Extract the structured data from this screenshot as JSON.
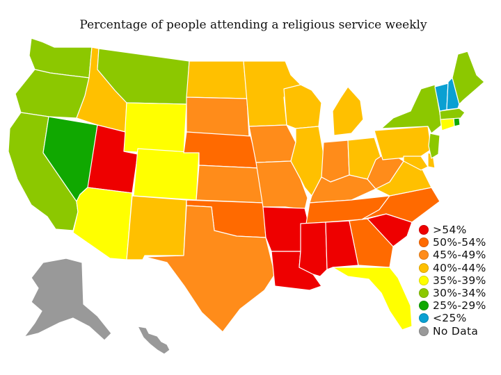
{
  "title": "Percentage of people attending a religious service weekly",
  "colors": {
    "gt54": "#ee0000",
    "p50_54": "#ff6a00",
    "p45_49": "#ff8c1a",
    "p40_44": "#ffc000",
    "p35_39": "#ffff00",
    "p30_34": "#8cc800",
    "p25_29": "#10a800",
    "lt25": "#0aa0d2",
    "nodata": "#999999"
  },
  "legend": [
    {
      "label": ">54%",
      "color": "#ee0000"
    },
    {
      "label": "50%-54%",
      "color": "#ff6a00"
    },
    {
      "label": "45%-49%",
      "color": "#ff8c1a"
    },
    {
      "label": "40%-44%",
      "color": "#ffc000"
    },
    {
      "label": "35%-39%",
      "color": "#ffff00"
    },
    {
      "label": "30%-34%",
      "color": "#8cc800"
    },
    {
      "label": "25%-29%",
      "color": "#10a800"
    },
    {
      "label": "<25%",
      "color": "#0aa0d2"
    },
    {
      "label": "No Data",
      "color": "#999999"
    }
  ],
  "states": [
    {
      "name": "Washington",
      "category": "30%-34%"
    },
    {
      "name": "Oregon",
      "category": "30%-34%"
    },
    {
      "name": "California",
      "category": "30%-34%"
    },
    {
      "name": "Nevada",
      "category": "25%-29%"
    },
    {
      "name": "Idaho",
      "category": "40%-44%"
    },
    {
      "name": "Montana",
      "category": "30%-34%"
    },
    {
      "name": "Wyoming",
      "category": "35%-39%"
    },
    {
      "name": "Utah",
      "category": ">54%"
    },
    {
      "name": "Colorado",
      "category": "35%-39%"
    },
    {
      "name": "Arizona",
      "category": "35%-39%"
    },
    {
      "name": "New Mexico",
      "category": "40%-44%"
    },
    {
      "name": "North Dakota",
      "category": "40%-44%"
    },
    {
      "name": "South Dakota",
      "category": "45%-49%"
    },
    {
      "name": "Nebraska",
      "category": "50%-54%"
    },
    {
      "name": "Kansas",
      "category": "45%-49%"
    },
    {
      "name": "Oklahoma",
      "category": "50%-54%"
    },
    {
      "name": "Texas",
      "category": "45%-49%"
    },
    {
      "name": "Minnesota",
      "category": "40%-44%"
    },
    {
      "name": "Iowa",
      "category": "45%-49%"
    },
    {
      "name": "Missouri",
      "category": "45%-49%"
    },
    {
      "name": "Arkansas",
      "category": ">54%"
    },
    {
      "name": "Louisiana",
      "category": ">54%"
    },
    {
      "name": "Wisconsin",
      "category": "40%-44%"
    },
    {
      "name": "Illinois",
      "category": "40%-44%"
    },
    {
      "name": "Michigan",
      "category": "40%-44%"
    },
    {
      "name": "Indiana",
      "category": "45%-49%"
    },
    {
      "name": "Ohio",
      "category": "40%-44%"
    },
    {
      "name": "Kentucky",
      "category": "45%-49%"
    },
    {
      "name": "Tennessee",
      "category": "50%-54%"
    },
    {
      "name": "Mississippi",
      "category": ">54%"
    },
    {
      "name": "Alabama",
      "category": ">54%"
    },
    {
      "name": "Georgia",
      "category": "50%-54%"
    },
    {
      "name": "Florida",
      "category": "35%-39%"
    },
    {
      "name": "South Carolina",
      "category": ">54%"
    },
    {
      "name": "North Carolina",
      "category": "50%-54%"
    },
    {
      "name": "Virginia",
      "category": "40%-44%"
    },
    {
      "name": "West Virginia",
      "category": "45%-49%"
    },
    {
      "name": "Pennsylvania",
      "category": "40%-44%"
    },
    {
      "name": "New York",
      "category": "30%-34%"
    },
    {
      "name": "Maryland",
      "category": "40%-44%"
    },
    {
      "name": "Delaware",
      "category": "40%-44%"
    },
    {
      "name": "New Jersey",
      "category": "30%-34%"
    },
    {
      "name": "Connecticut",
      "category": "35%-39%"
    },
    {
      "name": "Rhode Island",
      "category": "25%-29%"
    },
    {
      "name": "Massachusetts",
      "category": "30%-34%"
    },
    {
      "name": "Vermont",
      "category": "<25%"
    },
    {
      "name": "New Hampshire",
      "category": "<25%"
    },
    {
      "name": "Maine",
      "category": "30%-34%"
    },
    {
      "name": "Alaska",
      "category": "No Data"
    },
    {
      "name": "Hawaii",
      "category": "No Data"
    }
  ]
}
